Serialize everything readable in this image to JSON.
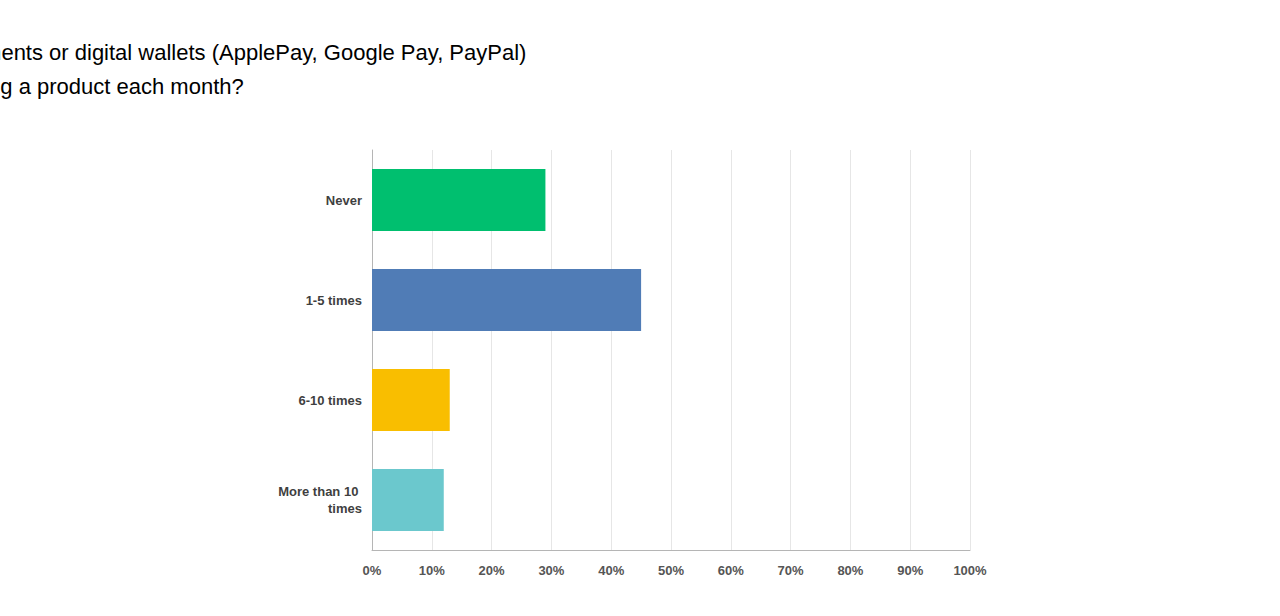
{
  "chart_data": {
    "type": "bar",
    "title": "Question: How often do you use mobile payments or digital wallets (ApplePay, Google Pay, PayPal) when purchasing a product each month?",
    "orientation": "horizontal",
    "categories": [
      "Never",
      "1-5 times",
      "6-10 times",
      "More than 10 times"
    ],
    "values": [
      29,
      45,
      13,
      12
    ],
    "colors": [
      "#00bf6f",
      "#507cb6",
      "#f9be00",
      "#6bc8cd"
    ],
    "xlim": [
      0,
      100
    ],
    "xticks": [
      {
        "value": 0,
        "label": "0%"
      },
      {
        "value": 10,
        "label": "10%"
      },
      {
        "value": 20,
        "label": "20%"
      },
      {
        "value": 30,
        "label": "30%"
      },
      {
        "value": 40,
        "label": "40%"
      },
      {
        "value": 50,
        "label": "50%"
      },
      {
        "value": 60,
        "label": "60%"
      },
      {
        "value": 70,
        "label": "70%"
      },
      {
        "value": 80,
        "label": "80%"
      },
      {
        "value": 90,
        "label": "90%"
      },
      {
        "value": 100,
        "label": "100%"
      }
    ],
    "grid": true
  }
}
